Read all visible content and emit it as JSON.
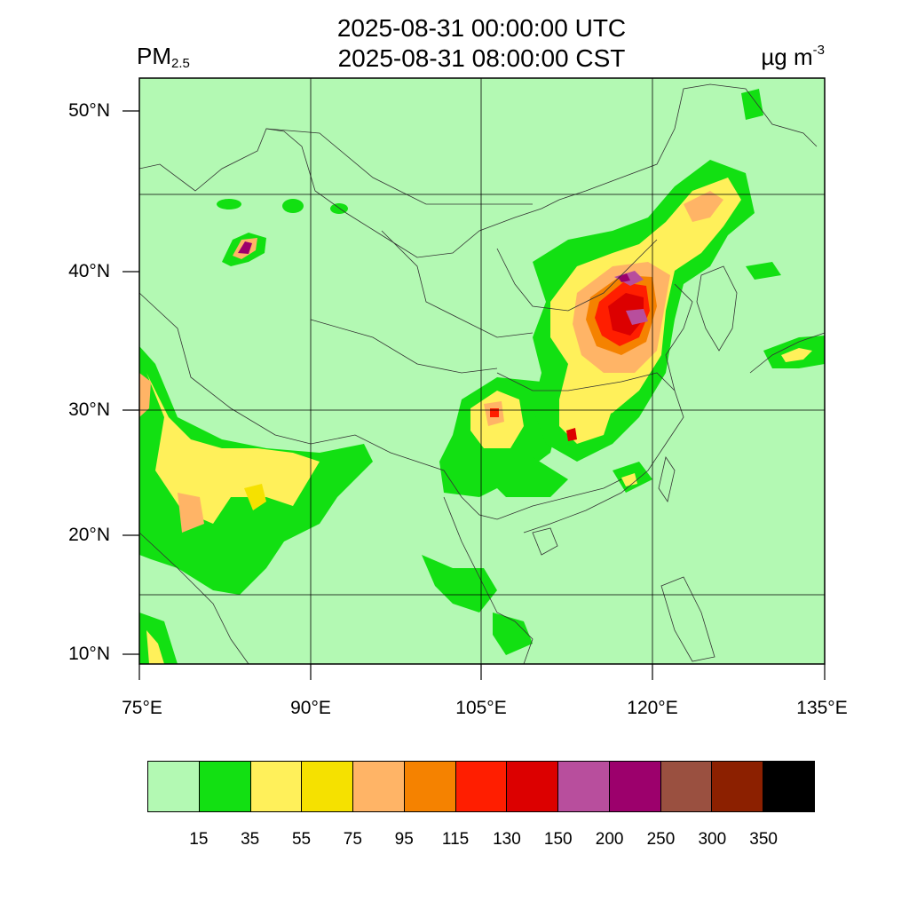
{
  "header": {
    "title_utc": "2025-08-31 00:00:00 UTC",
    "title_cst": "2025-08-31 08:00:00 CST",
    "variable": "PM",
    "variable_sub": "2.5",
    "unit": "µg m",
    "unit_sup": "-3"
  },
  "axes": {
    "lat_labels": [
      "50°N",
      "40°N",
      "30°N",
      "20°N",
      "10°N"
    ],
    "lon_labels": [
      "75°E",
      "90°E",
      "105°E",
      "120°E",
      "135°E"
    ]
  },
  "colorbar": {
    "colors": [
      "#b3f9b3",
      "#12e012",
      "#fff05a",
      "#f5e100",
      "#ffb466",
      "#f58200",
      "#ff1e00",
      "#dc0000",
      "#b84e9d",
      "#9c006c",
      "#9a5040",
      "#8c2000",
      "#000000"
    ],
    "ticks": [
      "15",
      "35",
      "55",
      "75",
      "95",
      "115",
      "130",
      "150",
      "200",
      "250",
      "300",
      "350"
    ]
  },
  "map": {
    "background_color": "#b3f9b3",
    "region": "East Asia"
  }
}
